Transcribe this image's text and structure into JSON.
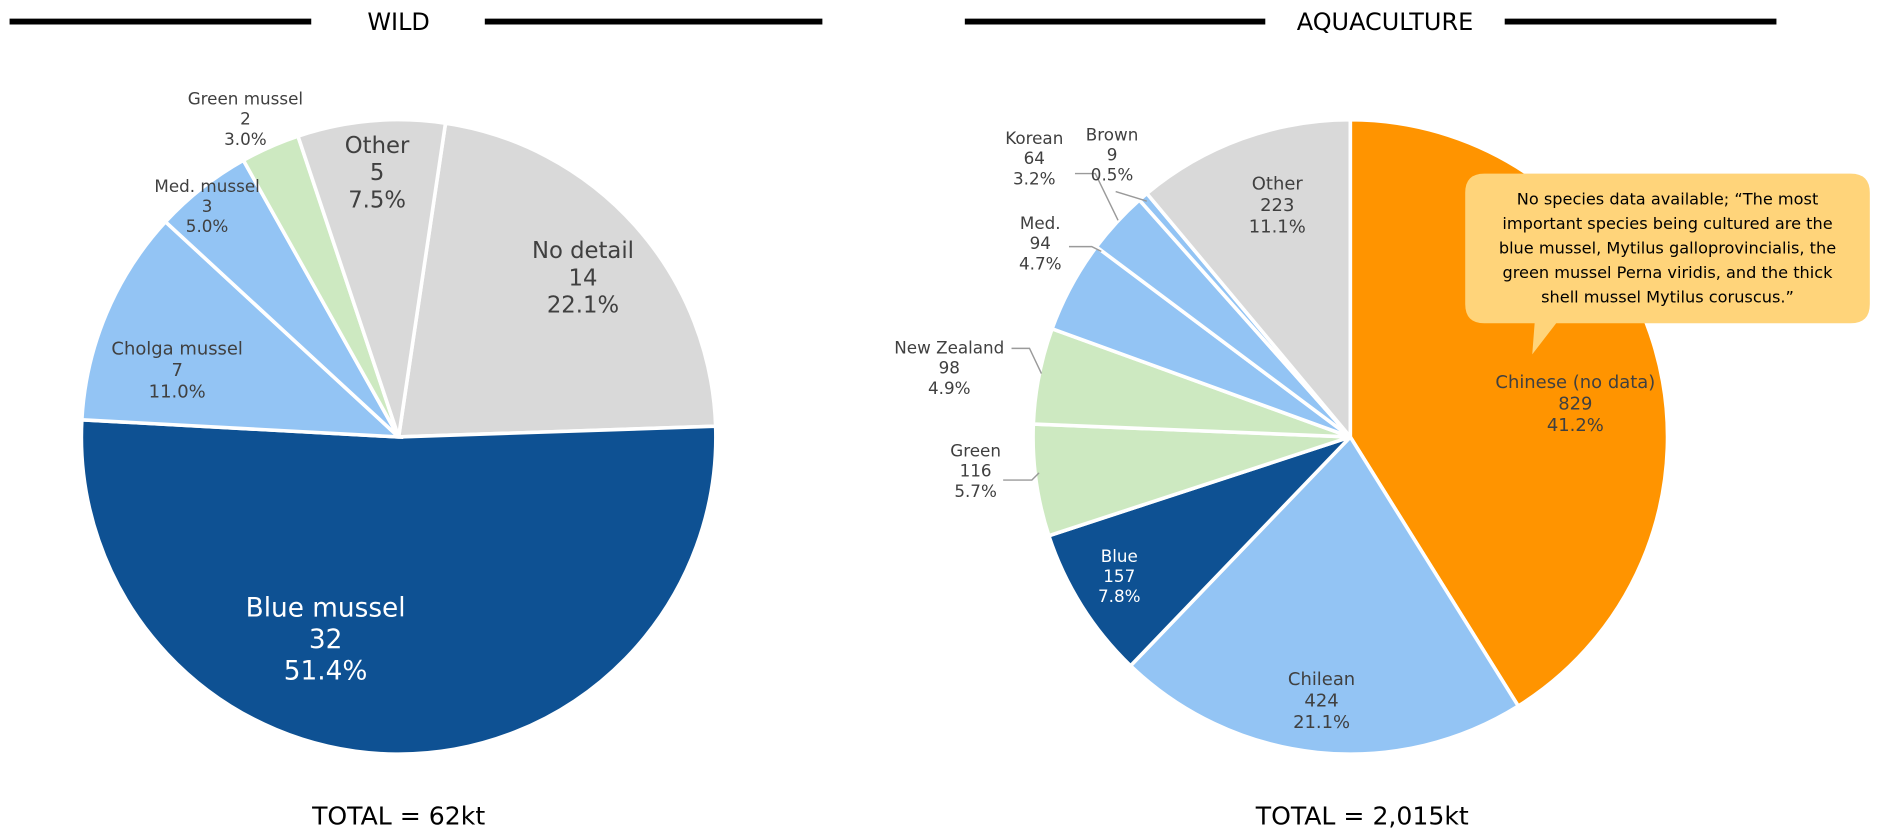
{
  "chart_data": [
    {
      "type": "pie",
      "title": "WILD",
      "total": "TOTAL = 62kt",
      "categories": [
        "No detail",
        "Blue mussel",
        "Cholga mussel",
        "Med. mussel",
        "Green mussel",
        "Other"
      ],
      "values": [
        14,
        32,
        7,
        3,
        2,
        5
      ],
      "percents": [
        22.1,
        51.4,
        11.0,
        5.0,
        3.0,
        7.5
      ],
      "percent_labels": [
        "22.1%",
        "51.4%",
        "11.0%",
        "5.0%",
        "3.0%",
        "7.5%"
      ],
      "colors": [
        "#d9d9d9",
        "#0e5193",
        "#93c4f4",
        "#93c4f4",
        "#cde9c1",
        "#d9d9d9"
      ]
    },
    {
      "type": "pie",
      "title": "AQUACULTURE",
      "total": "TOTAL = 2,015kt",
      "categories": [
        "Chinese (no data)",
        "Chilean",
        "Blue",
        "Green",
        "New Zealand",
        "Med.",
        "Korean",
        "Brown",
        "Other"
      ],
      "values": [
        829,
        424,
        157,
        116,
        98,
        94,
        64,
        9,
        223
      ],
      "percents": [
        41.2,
        21.1,
        7.8,
        5.7,
        4.9,
        4.7,
        3.2,
        0.5,
        11.1
      ],
      "percent_labels": [
        "41.2%",
        "21.1%",
        "7.8%",
        "5.7%",
        "4.9%",
        "4.7%",
        "3.2%",
        "0.5%",
        "11.1%"
      ],
      "colors": [
        "#ff9400",
        "#93c4f4",
        "#0e5193",
        "#cde9c1",
        "#cde9c1",
        "#93c4f4",
        "#93c4f4",
        "#93c4f4",
        "#d9d9d9"
      ],
      "annotation": [
        "No species data available; “The most",
        "important species being cultured are the",
        "blue mussel, Mytilus galloprovincialis, the",
        "green mussel Perna viridis, and the thick",
        "shell mussel Mytilus coruscus.”"
      ]
    }
  ]
}
